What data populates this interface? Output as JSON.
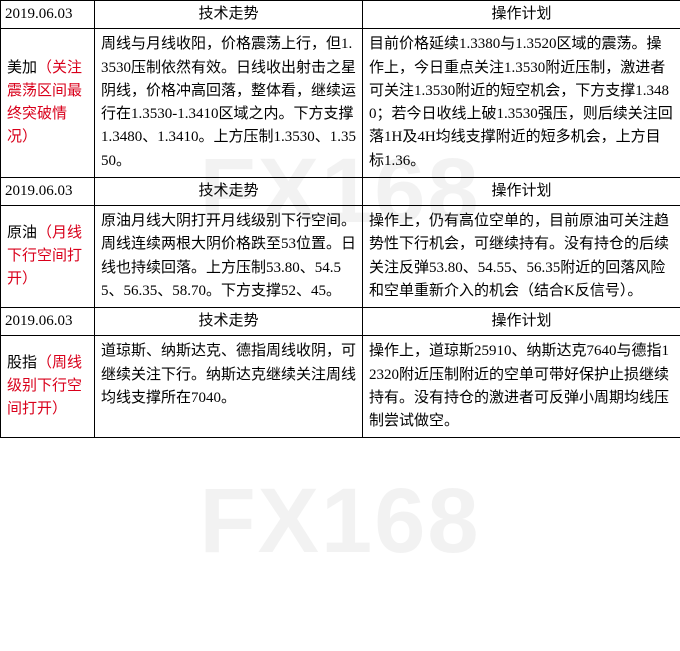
{
  "watermark_text": "FX168",
  "headers": {
    "tech": "技术走势",
    "plan": "操作计划"
  },
  "sections": [
    {
      "date": "2019.06.03",
      "instrument_name": "美加",
      "instrument_note": "（关注震荡区间最终突破情况）",
      "tech": "周线与月线收阳，价格震荡上行，但1.3530压制依然有效。日线收出射击之星阴线，价格冲高回落，整体看，继续运行在1.3530-1.3410区域之内。下方支撑1.3480、1.3410。上方压制1.3530、1.3550。",
      "plan": "目前价格延续1.3380与1.3520区域的震荡。操作上，今日重点关注1.3530附近压制，激进者可关注1.3530附近的短空机会，下方支撑1.3480；若今日收线上破1.3530强压，则后续关注回落1H及4H均线支撑附近的短多机会，上方目标1.36。"
    },
    {
      "date": "2019.06.03",
      "instrument_name": "原油",
      "instrument_note": "（月线下行空间打开）",
      "tech": "原油月线大阴打开月线级别下行空间。周线连续两根大阴价格跌至53位置。日线也持续回落。上方压制53.80、54.55、56.35、58.70。下方支撑52、45。",
      "plan": "操作上，仍有高位空单的，目前原油可关注趋势性下行机会，可继续持有。没有持仓的后续关注反弹53.80、54.55、56.35附近的回落风险和空单重新介入的机会（结合K反信号）。"
    },
    {
      "date": "2019.06.03",
      "instrument_name": "股指",
      "instrument_note": "（周线级别下行空间打开）",
      "tech": "道琼斯、纳斯达克、德指周线收阴，可继续关注下行。纳斯达克继续关注周线均线支撑所在7040。",
      "plan": "操作上，道琼斯25910、纳斯达克7640与德指12320附近压制附近的空单可带好保护止损继续持有。没有持仓的激进者可反弹小周期均线压制尝试做空。"
    }
  ]
}
